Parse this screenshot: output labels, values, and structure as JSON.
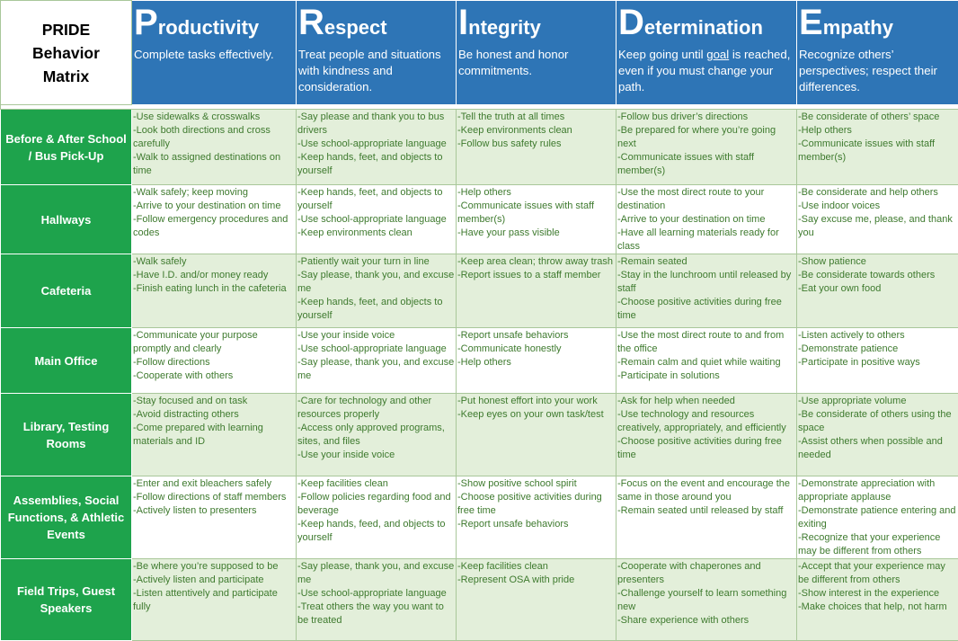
{
  "corner": {
    "lines": [
      "PRIDE",
      "Behavior",
      "Matrix"
    ]
  },
  "values": [
    {
      "initial": "P",
      "rest": "roductivity",
      "desc": "Complete tasks effectively."
    },
    {
      "initial": "R",
      "rest": "espect",
      "desc": "Treat people and situations with kindness and consideration."
    },
    {
      "initial": "I",
      "rest": "ntegrity",
      "desc": "Be honest and honor commitments."
    },
    {
      "initial": "D",
      "rest": "etermination",
      "desc_before": "Keep going until ",
      "desc_link": "goal",
      "desc_after": " is reached, even if you must change your path."
    },
    {
      "initial": "E",
      "rest": "mpathy",
      "desc": "Recognize others’ perspectives; respect their differences."
    }
  ],
  "rows": [
    {
      "label": "Before & After School / Bus Pick-Up",
      "cells": [
        [
          "-Use sidewalks & crosswalks",
          "-Look both directions and cross carefully",
          "-Walk to assigned destinations on time"
        ],
        [
          "-Say please and thank you to bus drivers",
          "-Use school-appropriate language",
          "-Keep hands, feet, and objects to yourself"
        ],
        [
          "-Tell the truth at all times",
          "-Keep environments clean",
          "-Follow bus safety rules"
        ],
        [
          "-Follow bus driver’s directions",
          "-Be prepared for where you’re going next",
          " -Communicate issues with staff member(s)"
        ],
        [
          "-Be considerate of others’ space",
          "-Help others",
          "-Communicate issues with staff member(s)"
        ]
      ]
    },
    {
      "label": "Hallways",
      "cells": [
        [
          "-Walk safely; keep moving",
          "-Arrive to your destination on time",
          "-Follow emergency procedures and codes"
        ],
        [
          "-Keep hands, feet, and objects to yourself",
          "-Use school-appropriate language",
          "-Keep environments clean"
        ],
        [
          "-Help others",
          "-Communicate issues with staff member(s)",
          "-Have your pass visible"
        ],
        [
          "-Use the most direct route to your destination",
          "-Arrive to your destination on time",
          "-Have all learning materials ready for class"
        ],
        [
          "-Be considerate and help others",
          "-Use indoor voices",
          "-Say excuse me, please, and thank you"
        ]
      ]
    },
    {
      "label": "Cafeteria",
      "cells": [
        [
          "-Walk safely",
          "-Have I.D. and/or money ready",
          "-Finish eating lunch in the cafeteria"
        ],
        [
          "-Patiently wait your turn in line",
          "-Say please, thank you, and excuse me",
          "-Keep hands, feet, and objects to yourself"
        ],
        [
          "-Keep area clean; throw away trash",
          "-Report issues to a staff member"
        ],
        [
          "-Remain seated",
          "-Stay in the lunchroom until released by staff",
          "-Choose positive activities during free time"
        ],
        [
          "-Show patience",
          "-Be considerate towards others",
          "-Eat your own food"
        ]
      ]
    },
    {
      "label": "Main Office",
      "cells": [
        [
          "-Communicate your purpose promptly and clearly",
          "-Follow directions",
          "-Cooperate with others"
        ],
        [
          "-Use your inside voice",
          "-Use school-appropriate language",
          "-Say please, thank you, and excuse me"
        ],
        [
          "-Report unsafe behaviors",
          "-Communicate honestly",
          "-Help others"
        ],
        [
          "-Use the most direct route to and from the office",
          "-Remain calm and quiet while waiting",
          "-Participate in solutions"
        ],
        [
          "-Listen actively to others",
          "-Demonstrate patience",
          "-Participate in positive ways"
        ]
      ]
    },
    {
      "label": "Library, Testing Rooms",
      "cells": [
        [
          "-Stay focused and on task",
          "-Avoid distracting others",
          "-Come prepared with learning materials and ID"
        ],
        [
          "-Care for technology and other resources properly",
          "-Access only approved programs, sites, and files",
          "-Use your inside voice"
        ],
        [
          "-Put honest effort into your work",
          "-Keep eyes on your own task/test"
        ],
        [
          "-Ask for help when needed",
          "-Use technology and resources creatively, appropriately, and efficiently",
          " -Choose positive activities during free time"
        ],
        [
          "-Use appropriate volume",
          "-Be considerate of others using the space",
          "-Assist others when possible and needed"
        ]
      ]
    },
    {
      "label": "Assemblies, Social Functions, & Athletic Events",
      "cells": [
        [
          "-Enter and exit bleachers safely",
          "-Follow directions of staff members",
          " -Actively listen to presenters"
        ],
        [
          "-Keep facilities clean",
          "-Follow policies regarding food and beverage",
          "-Keep hands, feed, and objects to yourself"
        ],
        [
          "-Show positive school spirit",
          "-Choose positive activities during free time",
          "-Report unsafe behaviors"
        ],
        [
          "-Focus on the event and encourage the same in those around you",
          "-Remain seated until released by staff"
        ],
        [
          "-Demonstrate appreciation with appropriate applause",
          "-Demonstrate patience entering and exiting",
          "-Recognize that your experience may be different from others"
        ]
      ]
    },
    {
      "label": "Field Trips, Guest Speakers",
      "cells": [
        [
          "-Be where you’re supposed to be",
          "-Actively listen and participate",
          "-Listen attentively and participate fully"
        ],
        [
          "-Say please, thank you, and excuse me",
          "-Use school-appropriate language",
          "-Treat others the way you want to be treated"
        ],
        [
          "-Keep facilities clean",
          "-Represent OSA with pride"
        ],
        [
          " -Cooperate with chaperones and presenters",
          "-Challenge yourself to learn something new",
          "-Share experience with others"
        ],
        [
          "-Accept that your experience may be different from others",
          "-Show interest in the experience",
          "-Make choices that help, not harm"
        ]
      ]
    }
  ]
}
